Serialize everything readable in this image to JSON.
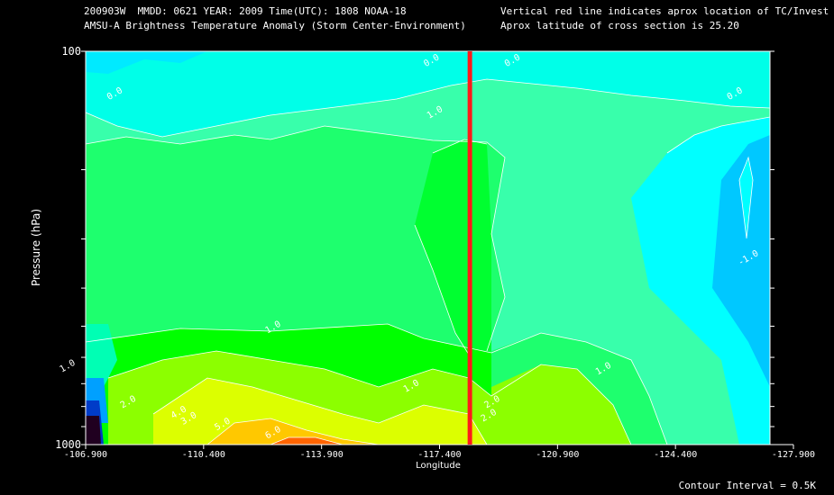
{
  "header": {
    "line1_left": "200903W  MMDD: 0621 YEAR: 2009 Time(UTC): 1808 NOAA-18",
    "line2_left": "AMSU-A Brightness Temperature Anomaly (Storm Center-Environment)",
    "line1_right": "Vertical red line indicates aprox location of TC/Invest",
    "line2_right": "Aprox latitude of cross section is 25.20"
  },
  "footer": {
    "contour_interval": "Contour Interval = 0.5K"
  },
  "chart_data": {
    "type": "heatmap",
    "title": "AMSU-A Brightness Temperature Anomaly (Storm Center-Environment)",
    "xlabel": "Longitude",
    "ylabel": "Pressure (hPa)",
    "x_tick_labels": [
      "-106.900",
      "-110.400",
      "-113.900",
      "-117.400",
      "-120.900",
      "-124.400",
      "-127.900"
    ],
    "x_ticks": [
      -106.9,
      -110.4,
      -113.9,
      -117.4,
      -120.9,
      -124.4,
      -127.9
    ],
    "xlim": [
      -106.9,
      -127.9
    ],
    "y_tick_labels": [
      "100",
      "1000"
    ],
    "ylim": [
      1000,
      100
    ],
    "y_scale": "log",
    "storm_longitude": -118.3,
    "contour_interval_K": 0.5,
    "contour_labels": [
      {
        "text": "0.0",
        "lon": -107.8,
        "p": 130
      },
      {
        "text": "0.0",
        "lon": -117.2,
        "p": 107
      },
      {
        "text": "0.0",
        "lon": -119.6,
        "p": 107
      },
      {
        "text": "0.0",
        "lon": -126.2,
        "p": 130
      },
      {
        "text": "1.0",
        "lon": -117.3,
        "p": 145
      },
      {
        "text": "-1.0",
        "lon": -126.6,
        "p": 340
      },
      {
        "text": "1.0",
        "lon": -112.5,
        "p": 510
      },
      {
        "text": "1.0",
        "lon": -106.4,
        "p": 640
      },
      {
        "text": "1.0",
        "lon": -122.3,
        "p": 650
      },
      {
        "text": "1.0",
        "lon": -116.6,
        "p": 720
      },
      {
        "text": "2.0",
        "lon": -108.2,
        "p": 790
      },
      {
        "text": "2.0",
        "lon": -119.0,
        "p": 790
      },
      {
        "text": "3.0",
        "lon": -110.0,
        "p": 870
      },
      {
        "text": "2.0",
        "lon": -118.9,
        "p": 855
      },
      {
        "text": "4.0",
        "lon": -109.7,
        "p": 840
      },
      {
        "text": "5.0",
        "lon": -111.0,
        "p": 900
      },
      {
        "text": "6.0",
        "lon": -112.5,
        "p": 945
      }
    ]
  }
}
